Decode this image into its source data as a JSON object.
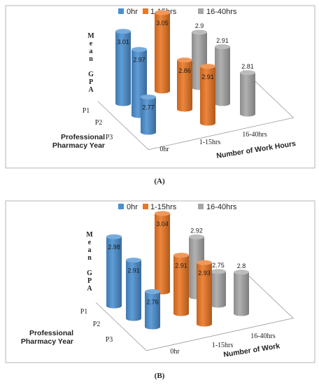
{
  "chart_data": [
    {
      "panel_label": "(A)",
      "type": "bar",
      "style": "3d-cylinder",
      "ylabel_letters": [
        "M",
        "e",
        "a",
        "n",
        "",
        "G",
        "P",
        "A"
      ],
      "xlabel": "Number of Work Hours",
      "zlabel": [
        "Professional",
        "Pharmacy Year"
      ],
      "x_categories": [
        "0hr",
        "1-15hrs",
        "16-40hrs"
      ],
      "z_categories": [
        "P1",
        "P2",
        "P3"
      ],
      "legend_placement": "top",
      "series": [
        {
          "name": "0hr",
          "color": "#4A8FD0",
          "values": [
            3.01,
            2.97,
            2.77
          ]
        },
        {
          "name": "1-15hrs",
          "color": "#EB7623",
          "values": [
            3.05,
            2.86,
            2.91
          ]
        },
        {
          "name": "16-40hrs",
          "color": "#A6A6A6",
          "values": [
            2.9,
            2.91,
            2.81
          ]
        }
      ]
    },
    {
      "panel_label": "(B)",
      "type": "bar",
      "style": "3d-cylinder",
      "ylabel_letters": [
        "M",
        "e",
        "a",
        "n",
        "",
        "G",
        "P",
        "A"
      ],
      "xlabel": "Number of Work",
      "zlabel": [
        "Professional",
        "Pharmacy Year"
      ],
      "x_categories": [
        "0hr",
        "1-15hrs",
        "16-40hrs"
      ],
      "z_categories": [
        "P1",
        "P2",
        "P3"
      ],
      "legend_placement": "top",
      "series": [
        {
          "name": "0hr",
          "color": "#4A8FD0",
          "values": [
            2.98,
            2.91,
            2.76
          ]
        },
        {
          "name": "1-15hrs",
          "color": "#EB7623",
          "values": [
            3.04,
            2.91,
            2.93
          ]
        },
        {
          "name": "16-40hrs",
          "color": "#A6A6A6",
          "values": [
            2.92,
            2.75,
            2.8
          ]
        }
      ]
    }
  ]
}
